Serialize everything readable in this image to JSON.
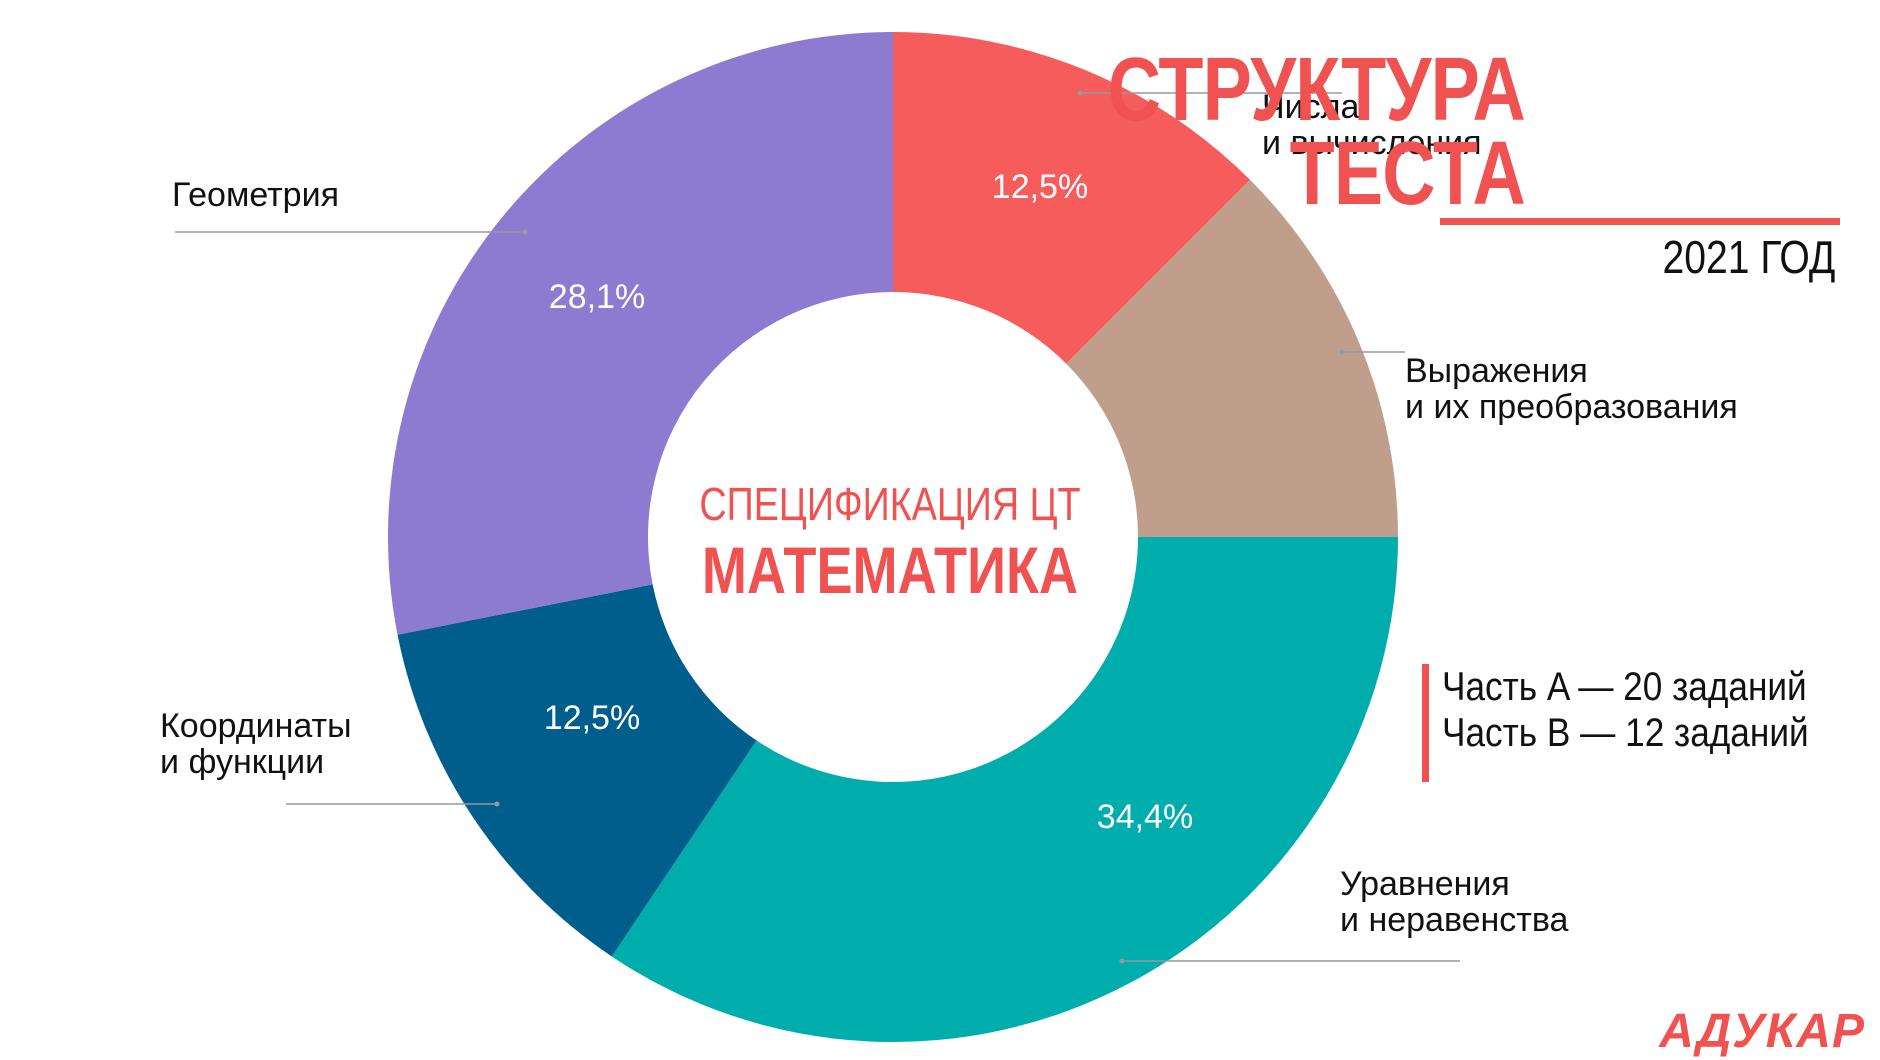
{
  "title": {
    "line1": "СТРУКТУРА",
    "line2": "ТЕСТА",
    "year": "2021 ГОД"
  },
  "center": {
    "subtitle": "СПЕЦИФИКАЦИЯ ЦТ",
    "title": "МАТЕМАТИКА"
  },
  "parts": {
    "a": "Часть A — 20 заданий",
    "b": "Часть B — 12 заданий"
  },
  "logo": "АДУКАР",
  "colors": {
    "accent": "#f05252",
    "numbers": "#f75c5c",
    "expressions": "#bf9f8c",
    "equations": "#00adad",
    "coordinates": "#005e8d",
    "geometry": "#8d7bd1",
    "leader": "#999999"
  },
  "chart_data": {
    "type": "donut",
    "unit": "%",
    "slices": [
      {
        "id": "numbers",
        "label": [
          "Числа",
          "и вычисления"
        ],
        "value": 12.5,
        "value_label": "12,5%"
      },
      {
        "id": "expressions",
        "label": [
          "Выражения",
          "и их преобразования"
        ],
        "value": 12.5,
        "value_label": ""
      },
      {
        "id": "equations",
        "label": [
          "Уравнения",
          "и неравенства"
        ],
        "value": 34.4,
        "value_label": "34,4%"
      },
      {
        "id": "coordinates",
        "label": [
          "Координаты",
          "и функции"
        ],
        "value": 12.5,
        "value_label": "12,5%"
      },
      {
        "id": "geometry",
        "label": [
          "Геометрия"
        ],
        "value": 28.1,
        "value_label": "28,1%"
      }
    ]
  }
}
